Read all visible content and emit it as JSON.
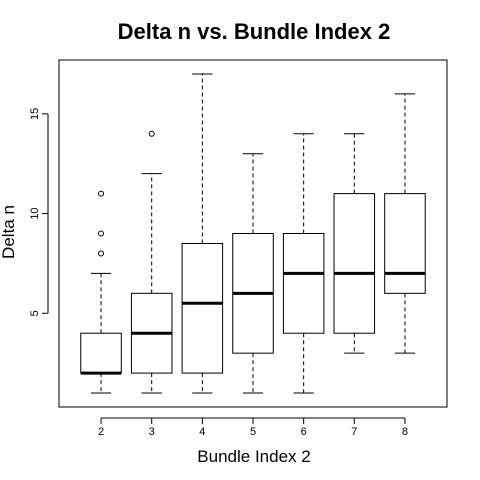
{
  "chart_data": {
    "type": "boxplot",
    "title": "Delta n vs. Bundle Index 2",
    "xlabel": "Bundle Index 2",
    "ylabel": "Delta n",
    "categories": [
      "2",
      "3",
      "4",
      "5",
      "6",
      "7",
      "8"
    ],
    "yticks": [
      5,
      10,
      15
    ],
    "ylim": [
      0.3,
      17.7
    ],
    "boxes": [
      {
        "category": "2",
        "whisker_low": 1,
        "q1": 2,
        "median": 2,
        "q3": 4,
        "whisker_high": 7,
        "outliers": [
          8,
          9,
          11
        ]
      },
      {
        "category": "3",
        "whisker_low": 1,
        "q1": 2,
        "median": 4,
        "q3": 6,
        "whisker_high": 12,
        "outliers": [
          14
        ]
      },
      {
        "category": "4",
        "whisker_low": 1,
        "q1": 2,
        "median": 5.5,
        "q3": 8.5,
        "whisker_high": 17,
        "outliers": []
      },
      {
        "category": "5",
        "whisker_low": 1,
        "q1": 3,
        "median": 6,
        "q3": 9,
        "whisker_high": 13,
        "outliers": []
      },
      {
        "category": "6",
        "whisker_low": 1,
        "q1": 4,
        "median": 7,
        "q3": 9,
        "whisker_high": 14,
        "outliers": []
      },
      {
        "category": "7",
        "whisker_low": 3,
        "q1": 4,
        "median": 7,
        "q3": 11,
        "whisker_high": 14,
        "outliers": []
      },
      {
        "category": "8",
        "whisker_low": 3,
        "q1": 6,
        "median": 7,
        "q3": 11,
        "whisker_high": 16,
        "outliers": []
      }
    ]
  }
}
